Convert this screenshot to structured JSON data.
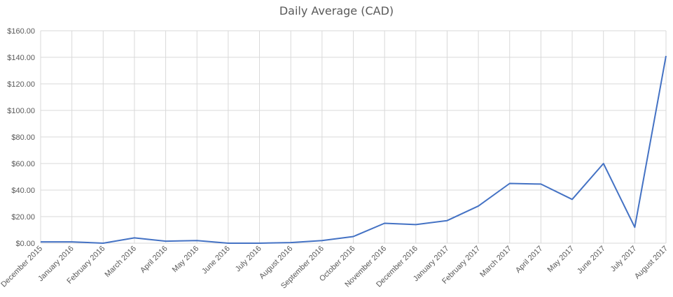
{
  "chart_data": {
    "type": "line",
    "title": "Daily Average (CAD)",
    "xlabel": "",
    "ylabel": "",
    "ylim": [
      0,
      160
    ],
    "yticks": [
      0,
      20,
      40,
      60,
      80,
      100,
      120,
      140,
      160
    ],
    "ytick_labels": [
      "$0.00",
      "$20.00",
      "$40.00",
      "$60.00",
      "$80.00",
      "$100.00",
      "$120.00",
      "$140.00",
      "$160.00"
    ],
    "grid": true,
    "legend": "none",
    "categories": [
      "December 2015",
      "January 2016",
      "February 2016",
      "March 2016",
      "April 2016",
      "May 2016",
      "June 2016",
      "July 2016",
      "August 2016",
      "September 2016",
      "October 2016",
      "November 2016",
      "December 2016",
      "January 2017",
      "February 2017",
      "March 2017",
      "April 2017",
      "May 2017",
      "June 2017",
      "July 2017",
      "August 2017"
    ],
    "series": [
      {
        "color": "#4472c4",
        "values": [
          1.0,
          1.0,
          0.0,
          4.0,
          1.5,
          2.0,
          0.0,
          0.0,
          0.5,
          2.0,
          5.0,
          15.0,
          14.0,
          17.0,
          28.0,
          45.0,
          44.5,
          33.0,
          60.0,
          12.0,
          141.0
        ]
      }
    ],
    "colors": {
      "line": "#4472c4",
      "grid": "#d9d9d9",
      "text": "#595959"
    }
  }
}
